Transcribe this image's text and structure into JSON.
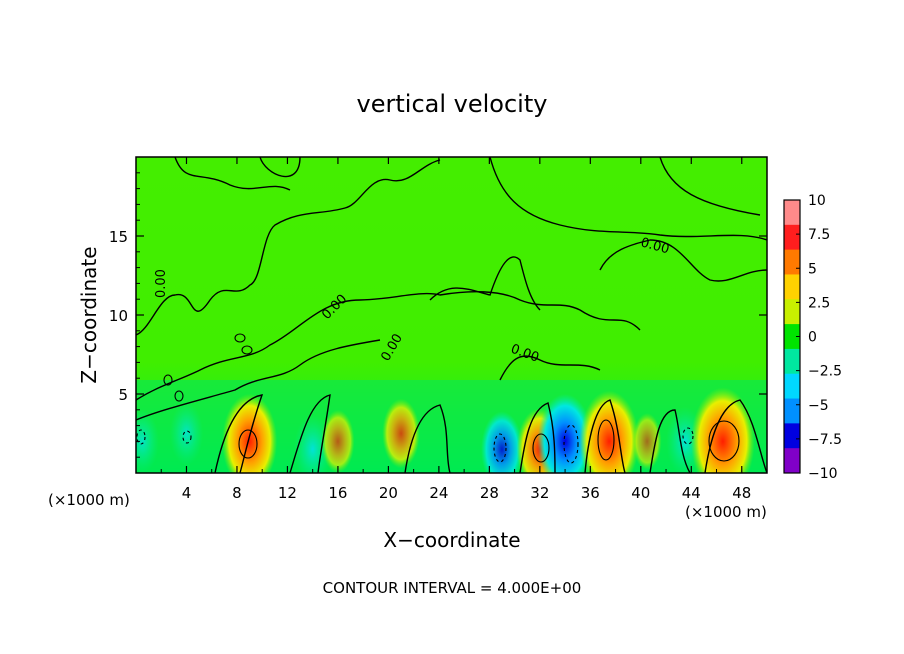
{
  "chart_data": {
    "type": "heatmap",
    "title": "vertical velocity",
    "xlabel": "X−coordinate",
    "ylabel": "Z−coordinate",
    "x_unit_label": "(×1000 m)",
    "z_unit_label": "(×1000 m)",
    "xlim": [
      0,
      50
    ],
    "ylim": [
      0,
      20
    ],
    "x_ticks": [
      "4",
      "8",
      "12",
      "16",
      "20",
      "24",
      "28",
      "32",
      "36",
      "40",
      "44",
      "48"
    ],
    "x_tick_values": [
      4,
      8,
      12,
      16,
      20,
      24,
      28,
      32,
      36,
      40,
      44,
      48
    ],
    "y_ticks": [
      "5",
      "10",
      "15"
    ],
    "y_tick_values": [
      5,
      10,
      15
    ],
    "footer": "CONTOUR INTERVAL = 4.000E+00",
    "contour_labels": [
      "0.00",
      "0.00",
      "0.00",
      "0.00",
      "0.00"
    ],
    "colorbar": {
      "labels": [
        "10",
        "7.5",
        "5",
        "2.5",
        "0",
        "−2.5",
        "−5",
        "−7.5",
        "−10"
      ],
      "values": [
        10,
        7.5,
        5,
        2.5,
        0,
        -2.5,
        -5,
        -7.5,
        -10
      ],
      "colors": [
        "#ff8a8a",
        "#ff1e1e",
        "#ff7a00",
        "#ffd200",
        "#c8f000",
        "#00e400",
        "#00e8a0",
        "#00d8ff",
        "#0090ff",
        "#0000e0",
        "#8000c8"
      ]
    },
    "cells": [
      {
        "x": 9.0,
        "z": 2.0,
        "w": 8
      },
      {
        "x": 14.0,
        "z": 1.5,
        "w": -4
      },
      {
        "x": 16.0,
        "z": 2.0,
        "w": 3
      },
      {
        "x": 21.0,
        "z": 2.5,
        "w": 4
      },
      {
        "x": 29.0,
        "z": 1.5,
        "w": -5
      },
      {
        "x": 32.0,
        "z": 1.5,
        "w": 6
      },
      {
        "x": 34.0,
        "z": 2.0,
        "w": -8
      },
      {
        "x": 37.5,
        "z": 2.0,
        "w": 9
      },
      {
        "x": 40.5,
        "z": 2.0,
        "w": 2
      },
      {
        "x": 43.5,
        "z": 2.0,
        "w": -4
      },
      {
        "x": 46.5,
        "z": 2.0,
        "w": 10
      },
      {
        "x": 0.5,
        "z": 2.0,
        "w": -3
      },
      {
        "x": 4.0,
        "z": 2.5,
        "w": -3
      }
    ]
  }
}
